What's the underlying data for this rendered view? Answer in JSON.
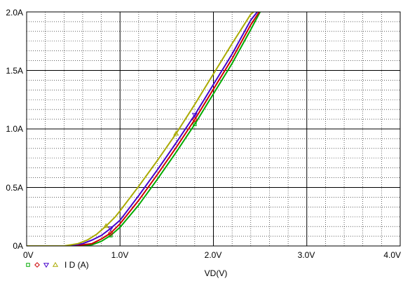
{
  "chart_data": {
    "type": "line",
    "xlabel": "VD(V)",
    "ylabel": "",
    "xlim": [
      0,
      4.0
    ],
    "ylim": [
      0,
      2.0
    ],
    "x_ticks": [
      "0V",
      "1.0V",
      "2.0V",
      "3.0V",
      "4.0V"
    ],
    "y_ticks": [
      "0A",
      "0.5A",
      "1.0A",
      "1.5A",
      "2.0A"
    ],
    "grid": true,
    "legend_position": "bottom-left",
    "legend_text": "I D (A)",
    "series": [
      {
        "marker": "square",
        "color": "#00aa00",
        "x": [
          0,
          0.5,
          0.7,
          0.8,
          0.9,
          1.0,
          1.2,
          1.4,
          1.6,
          1.8,
          2.0,
          2.2,
          2.4,
          2.5
        ],
        "y": [
          0,
          0,
          0.01,
          0.04,
          0.09,
          0.16,
          0.35,
          0.57,
          0.8,
          1.04,
          1.3,
          1.56,
          1.85,
          2.0
        ]
      },
      {
        "marker": "diamond",
        "color": "#cc0000",
        "x": [
          0,
          0.5,
          0.7,
          0.8,
          0.9,
          1.0,
          1.2,
          1.4,
          1.6,
          1.8,
          2.0,
          2.2,
          2.4,
          2.49
        ],
        "y": [
          0,
          0,
          0.02,
          0.06,
          0.11,
          0.19,
          0.39,
          0.61,
          0.84,
          1.08,
          1.34,
          1.6,
          1.89,
          2.0
        ]
      },
      {
        "marker": "triangle-down",
        "color": "#4400cc",
        "x": [
          0,
          0.45,
          0.6,
          0.7,
          0.8,
          0.9,
          1.0,
          1.2,
          1.4,
          1.6,
          1.8,
          2.0,
          2.2,
          2.4,
          2.47
        ],
        "y": [
          0,
          0,
          0.02,
          0.05,
          0.09,
          0.15,
          0.22,
          0.43,
          0.65,
          0.88,
          1.12,
          1.38,
          1.64,
          1.93,
          2.0
        ]
      },
      {
        "marker": "triangle-up",
        "color": "#aaaa00",
        "x": [
          0,
          0.4,
          0.55,
          0.65,
          0.75,
          0.85,
          0.95,
          1.0,
          1.2,
          1.4,
          1.6,
          1.8,
          2.0,
          2.2,
          2.4,
          2.43
        ],
        "y": [
          0,
          0,
          0.02,
          0.05,
          0.1,
          0.17,
          0.25,
          0.3,
          0.51,
          0.73,
          0.96,
          1.21,
          1.47,
          1.73,
          1.98,
          2.0
        ]
      }
    ]
  }
}
